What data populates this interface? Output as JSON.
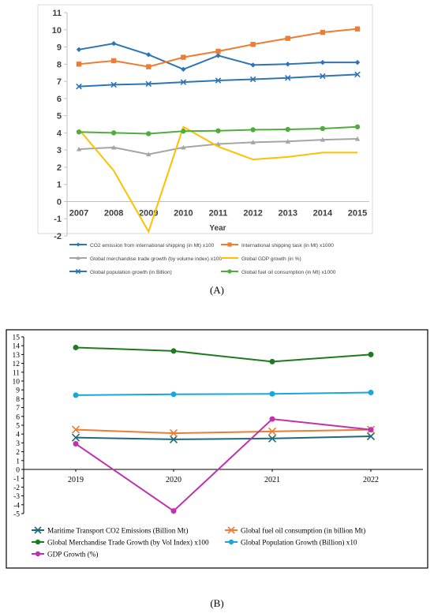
{
  "panel_labels": [
    "(A)",
    "(B)"
  ],
  "chart_data": [
    {
      "type": "line",
      "title": "",
      "xlabel": "Year",
      "ylabel": "",
      "categories": [
        "2007",
        "2008",
        "2009",
        "2010",
        "2011",
        "2012",
        "2013",
        "2014",
        "2015"
      ],
      "ylim": [
        -2,
        11
      ],
      "yticks": [
        "-2",
        "-1",
        "0",
        "1",
        "2",
        "3",
        "4",
        "5",
        "6",
        "7",
        "8",
        "9",
        "10",
        "11"
      ],
      "grid": false,
      "legend_position": "bottom",
      "series": [
        {
          "name": "CO2 emission from international shipping (in Mt) x100",
          "color": "#2e75b6",
          "marker": "diamond",
          "values": [
            8.85,
            9.2,
            8.55,
            7.7,
            8.5,
            7.95,
            8.0,
            8.1,
            8.1
          ]
        },
        {
          "name": "International shipping task (in Mt) x1000",
          "color": "#ed7d31",
          "marker": "square",
          "values": [
            8.0,
            8.2,
            7.85,
            8.4,
            8.75,
            9.15,
            9.5,
            9.85,
            10.05
          ]
        },
        {
          "name": "Global merchandise trade growth (by volume index) x100",
          "color": "#a5a5a5",
          "marker": "triangle",
          "values": [
            3.05,
            3.15,
            2.75,
            3.15,
            3.35,
            3.45,
            3.5,
            3.6,
            3.65
          ]
        },
        {
          "name": "Global GDP growth (in %)",
          "color": "#ffc000",
          "marker": "none",
          "values": [
            4.2,
            1.8,
            -1.75,
            4.35,
            3.2,
            2.45,
            2.6,
            2.85,
            2.85
          ]
        },
        {
          "name": "Global population growth (in Billion)",
          "color": "#2e75b6",
          "marker": "x",
          "values": [
            6.7,
            6.8,
            6.85,
            6.95,
            7.05,
            7.12,
            7.2,
            7.3,
            7.4
          ]
        },
        {
          "name": "Global fuel oil consumption (in Mt) x1000",
          "color": "#4ead3c",
          "marker": "circle",
          "values": [
            4.05,
            4.0,
            3.95,
            4.1,
            4.12,
            4.18,
            4.2,
            4.25,
            4.35
          ]
        }
      ]
    },
    {
      "type": "line",
      "title": "",
      "xlabel": "",
      "ylabel": "",
      "categories": [
        "2019",
        "2020",
        "2021",
        "2022"
      ],
      "ylim": [
        -5,
        15
      ],
      "yticks": [
        "-5",
        "-4",
        "-3",
        "-2",
        "-1",
        "0",
        "1",
        "2",
        "3",
        "4",
        "5",
        "6",
        "7",
        "8",
        "9",
        "10",
        "11",
        "12",
        "13",
        "14",
        "15"
      ],
      "grid": false,
      "legend_position": "bottom",
      "series": [
        {
          "name": "Maritime Transport CO2 Emissions (Billion Mt)",
          "color": "#1f6b7a",
          "marker": "x",
          "values": [
            3.6,
            3.4,
            3.5,
            3.75
          ]
        },
        {
          "name": "Global fuel oil consumption (in billion Mt)",
          "color": "#ed7d31",
          "marker": "x",
          "values": [
            4.5,
            4.1,
            4.3,
            4.5
          ]
        },
        {
          "name": "Global Merchandise Trade Growth (by Vol Index) x100",
          "color": "#1e7a1e",
          "marker": "circle",
          "values": [
            13.8,
            13.4,
            12.2,
            13.0
          ]
        },
        {
          "name": "Global Population Growth (Billion) x10",
          "color": "#16a8d8",
          "marker": "circle",
          "values": [
            8.4,
            8.5,
            8.55,
            8.7
          ]
        },
        {
          "name": "GDP Growth (%)",
          "color": "#c030b0",
          "marker": "circle",
          "values": [
            2.9,
            -4.7,
            5.7,
            4.5
          ]
        }
      ]
    }
  ]
}
